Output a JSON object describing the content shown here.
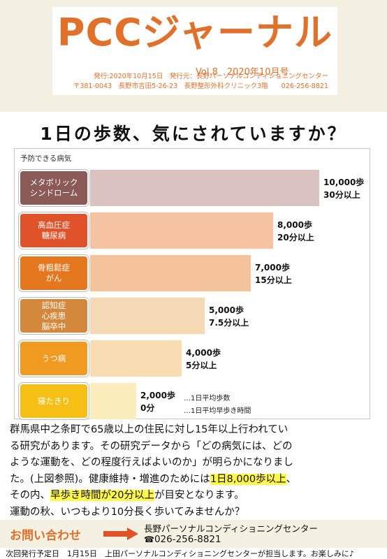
{
  "masthead": {
    "title": "PCCジャーナル",
    "issue": "Vol.8　2020年10月号",
    "publisher_line": "発行:2020年10月15日　発行元：長野パーソナルコンディショニングセンター",
    "address_line": "〒381-0043　長野市吉田5-26-23　長野整形外科クリニック3階　　026-256-8821"
  },
  "headline": "1日の歩数、気にされていますか？",
  "chart_data": {
    "type": "bar",
    "title": "予防できる病気",
    "categories": [
      "メタボリック\nシンドローム",
      "高血圧症\n糖尿病",
      "骨粗鬆症\nがん",
      "認知症\n心疾患\n脳卒中",
      "うつ病",
      "寝たきり"
    ],
    "series": [
      {
        "name": "1日平均歩数",
        "values": [
          10000,
          8000,
          7000,
          5000,
          4000,
          2000
        ]
      },
      {
        "name": "1日平均早歩き時間",
        "values": [
          30,
          20,
          15,
          7.5,
          5,
          0
        ]
      }
    ],
    "steps_labels": [
      "10,000歩",
      "8,000歩",
      "7,000歩",
      "5,000歩",
      "4,000歩",
      "2,000歩"
    ],
    "minutes_labels": [
      "30分以上",
      "20分以上",
      "15分以上",
      "7.5分以上",
      "5分以上",
      "0分"
    ],
    "legend": [
      "…1日平均歩数",
      "…1日平均早歩き時間"
    ],
    "label_colors": [
      "#8b5a57",
      "#e0522a",
      "#e5781f",
      "#d4883c",
      "#f09a22",
      "#f5bf16"
    ],
    "bar_colors": [
      "#dac2c1",
      "#f6c3a3",
      "#f4c29b",
      "#f4d9b4",
      "#f9dcb1",
      "#fbeebc"
    ],
    "xlim": [
      0,
      10000
    ]
  },
  "body": {
    "line1": "群馬県中之条町で65歳以上の住民に対し15年以上行われてい",
    "line2": "る研究があります。その研究データから「どの病気には、どの",
    "line3": "ような運動を、どの程度行えばよいのか」が明らかになりまし",
    "line4_a": "た。(上図参照)。健康維持・増進のためには",
    "line4_hl": "1日8,000歩以上",
    "line4_b": "、",
    "line5_a": "その内、",
    "line5_hl": "早歩き時間が20分以上",
    "line5_b": "が目安となります。",
    "line6": "運動の秋、いつもより10分長く歩いてみませんか？"
  },
  "contact": {
    "title": "お問い合わせ",
    "name": "長野パーソナルコンディショニングセンター",
    "phone_icon": "☎",
    "tel": "026-256-8821"
  },
  "footer": "次回発行予定日　1月15日　上田パーソナルコンディショニングセンターが担当します。お楽しみに♪",
  "colors": {
    "accent": "#e0702a",
    "band": "#f4f1e2",
    "highlight": "#fff74a"
  }
}
